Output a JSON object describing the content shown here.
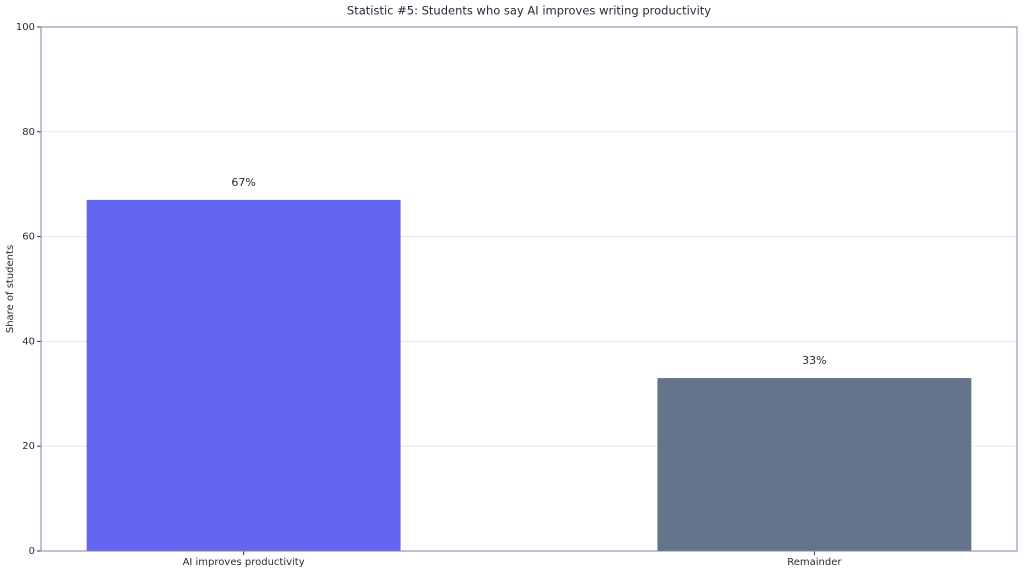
{
  "chart_data": {
    "type": "bar",
    "title": "Statistic #5: Students who say AI improves writing productivity",
    "y_label": "Share of students",
    "categories": [
      "AI improves productivity",
      "Remainder"
    ],
    "values": [
      67,
      33
    ],
    "value_labels": [
      "67%",
      "33%"
    ],
    "colors": [
      "#6366f1",
      "#64748b"
    ],
    "ylim": [
      0,
      100
    ],
    "yticks": [
      0,
      20,
      40,
      60,
      80,
      100
    ],
    "grid": true
  }
}
